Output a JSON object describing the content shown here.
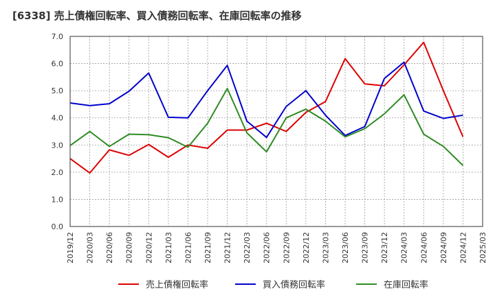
{
  "chart_data": {
    "type": "line",
    "title": "[6338]  売上債権回転率、買入債務回転率、在庫回転率の推移",
    "xlabel": "",
    "ylabel": "",
    "ylim": [
      0,
      7
    ],
    "yticks": [
      "0.0",
      "1.0",
      "2.0",
      "3.0",
      "4.0",
      "5.0",
      "6.0",
      "7.0"
    ],
    "grid": true,
    "legend_position": "bottom",
    "x": [
      "2019/12",
      "2020/03",
      "2020/06",
      "2020/09",
      "2020/12",
      "2021/03",
      "2021/06",
      "2021/09",
      "2021/12",
      "2022/03",
      "2022/06",
      "2022/09",
      "2022/12",
      "2023/03",
      "2023/06",
      "2023/09",
      "2023/12",
      "2024/03",
      "2024/06",
      "2024/09",
      "2024/12",
      "2025/03"
    ],
    "series": [
      {
        "name": "売上債権回転率",
        "color": "#dd0000",
        "values": [
          2.5,
          1.97,
          2.82,
          2.62,
          3.02,
          2.55,
          3.0,
          2.88,
          3.55,
          3.55,
          3.8,
          3.5,
          4.2,
          4.6,
          6.18,
          5.25,
          5.18,
          5.95,
          6.78,
          5.0,
          3.3,
          null
        ]
      },
      {
        "name": "買入債務回転率",
        "color": "#0000cc",
        "values": [
          4.55,
          4.45,
          4.52,
          4.98,
          5.65,
          4.02,
          4.0,
          5.0,
          5.93,
          3.88,
          3.28,
          4.42,
          5.0,
          4.1,
          3.35,
          3.68,
          5.45,
          6.05,
          4.25,
          3.98,
          4.1,
          null
        ]
      },
      {
        "name": "在庫回転率",
        "color": "#2e8b22",
        "values": [
          2.98,
          3.5,
          2.95,
          3.4,
          3.38,
          3.27,
          2.92,
          3.8,
          5.08,
          3.45,
          2.75,
          4.0,
          4.32,
          3.88,
          3.3,
          3.6,
          4.15,
          4.85,
          3.4,
          2.95,
          2.25,
          null
        ]
      }
    ]
  }
}
